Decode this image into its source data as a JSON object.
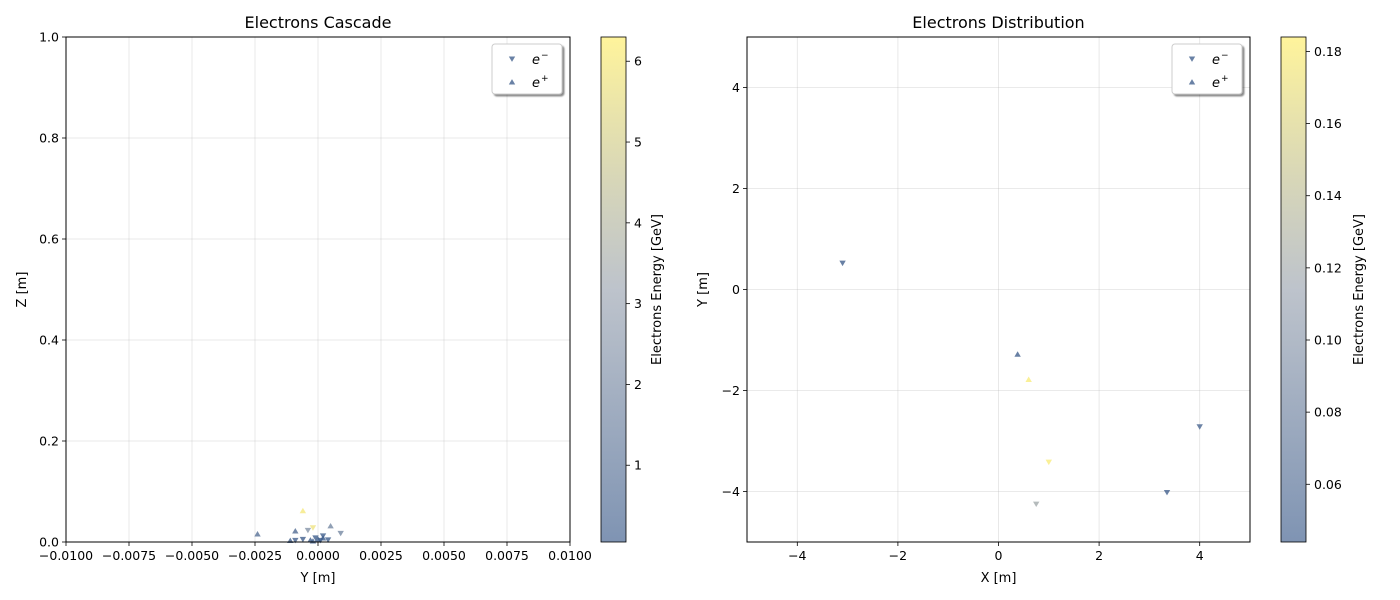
{
  "chart_data": [
    {
      "type": "scatter",
      "title": "Electrons Cascade",
      "xlabel": "Y [m]",
      "ylabel": "Z [m]",
      "xlim": [
        -0.01,
        0.01
      ],
      "ylim": [
        0,
        1.0
      ],
      "xticks": [
        -0.01,
        -0.0075,
        -0.005,
        -0.0025,
        0,
        0.0025,
        0.005,
        0.0075,
        0.01
      ],
      "xtick_labels": [
        "−0.0100",
        "−0.0075",
        "−0.0050",
        "−0.0025",
        "0.0000",
        "0.0025",
        "0.0050",
        "0.0075",
        "0.0100"
      ],
      "yticks": [
        0,
        0.2,
        0.4,
        0.6,
        0.8,
        1.0
      ],
      "ytick_labels": [
        "0.0",
        "0.2",
        "0.4",
        "0.6",
        "0.8",
        "1.0"
      ],
      "grid": true,
      "legend_position": "top-right",
      "legend": [
        {
          "base": "e",
          "sup": "−",
          "marker": "triangle-down"
        },
        {
          "base": "e",
          "sup": "+",
          "marker": "triangle-up"
        }
      ],
      "colorbar": {
        "label": "Electrons Energy [GeV]",
        "min": 0.05,
        "max": 6.3,
        "ticks": [
          1,
          2,
          3,
          4,
          5,
          6
        ],
        "tick_labels": [
          "1",
          "2",
          "3",
          "4",
          "5",
          "6"
        ],
        "colors": [
          "#3a5a8a",
          "#9aa3b0",
          "#fff07a"
        ]
      },
      "series": [
        {
          "name": "e−",
          "marker": "triangle-down",
          "points": [
            {
              "x": -0.0006,
              "y": 0.005,
              "e": 0.3
            },
            {
              "x": -0.0004,
              "y": 0.023,
              "e": 2.5
            },
            {
              "x": -0.0002,
              "y": 0.028,
              "e": 5.8
            },
            {
              "x": 0.0009,
              "y": 0.017,
              "e": 2.0
            },
            {
              "x": -0.0009,
              "y": 0.003,
              "e": 0.4
            },
            {
              "x": -0.0001,
              "y": 0.008,
              "e": 0.2
            },
            {
              "x": 0.0001,
              "y": 0.003,
              "e": 0.2
            },
            {
              "x": 0.0002,
              "y": 0.012,
              "e": 0.3
            },
            {
              "x": 0.0004,
              "y": 0.004,
              "e": 0.2
            }
          ]
        },
        {
          "name": "e+",
          "marker": "triangle-up",
          "points": [
            {
              "x": -0.0024,
              "y": 0.016,
              "e": 1.0
            },
            {
              "x": -0.0009,
              "y": 0.022,
              "e": 0.8
            },
            {
              "x": -0.0006,
              "y": 0.062,
              "e": 6.0
            },
            {
              "x": 0.0005,
              "y": 0.032,
              "e": 2.0
            },
            {
              "x": -0.0011,
              "y": 0.003,
              "e": 0.3
            },
            {
              "x": -0.0003,
              "y": 0.004,
              "e": 0.2
            },
            {
              "x": 0.0,
              "y": 0.006,
              "e": 0.2
            },
            {
              "x": 0.0002,
              "y": 0.008,
              "e": 0.2
            },
            {
              "x": -0.0002,
              "y": 0.002,
              "e": 0.2
            }
          ]
        }
      ]
    },
    {
      "type": "scatter",
      "title": "Electrons Distribution",
      "xlabel": "X [m]",
      "ylabel": "Y [m]",
      "xlim": [
        -5,
        5
      ],
      "ylim": [
        -5,
        5
      ],
      "xticks": [
        -4,
        -2,
        0,
        2,
        4
      ],
      "xtick_labels": [
        "−4",
        "−2",
        "0",
        "2",
        "4"
      ],
      "yticks": [
        -4,
        -2,
        0,
        2,
        4
      ],
      "ytick_labels": [
        "−4",
        "−2",
        "0",
        "2",
        "4"
      ],
      "grid": true,
      "legend_position": "top-right",
      "legend": [
        {
          "base": "e",
          "sup": "−",
          "marker": "triangle-down"
        },
        {
          "base": "e",
          "sup": "+",
          "marker": "triangle-up"
        }
      ],
      "colorbar": {
        "label": "Electrons Energy [GeV]",
        "min": 0.044,
        "max": 0.184,
        "ticks": [
          0.06,
          0.08,
          0.1,
          0.12,
          0.14,
          0.16,
          0.18
        ],
        "tick_labels": [
          "0.06",
          "0.08",
          "0.10",
          "0.12",
          "0.14",
          "0.16",
          "0.18"
        ],
        "colors": [
          "#3a5a8a",
          "#9aa3b0",
          "#fff07a"
        ]
      },
      "series": [
        {
          "name": "e−",
          "marker": "triangle-down",
          "points": [
            {
              "x": -3.1,
              "y": 0.52,
              "e": 0.05
            },
            {
              "x": 4.0,
              "y": -2.72,
              "e": 0.055
            },
            {
              "x": 3.35,
              "y": -4.02,
              "e": 0.05
            },
            {
              "x": 1.0,
              "y": -3.42,
              "e": 0.18
            },
            {
              "x": 0.75,
              "y": -4.25,
              "e": 0.12
            }
          ]
        },
        {
          "name": "e+",
          "marker": "triangle-up",
          "points": [
            {
              "x": 0.38,
              "y": -1.28,
              "e": 0.05
            },
            {
              "x": 0.6,
              "y": -1.78,
              "e": 0.18
            }
          ]
        }
      ]
    }
  ]
}
